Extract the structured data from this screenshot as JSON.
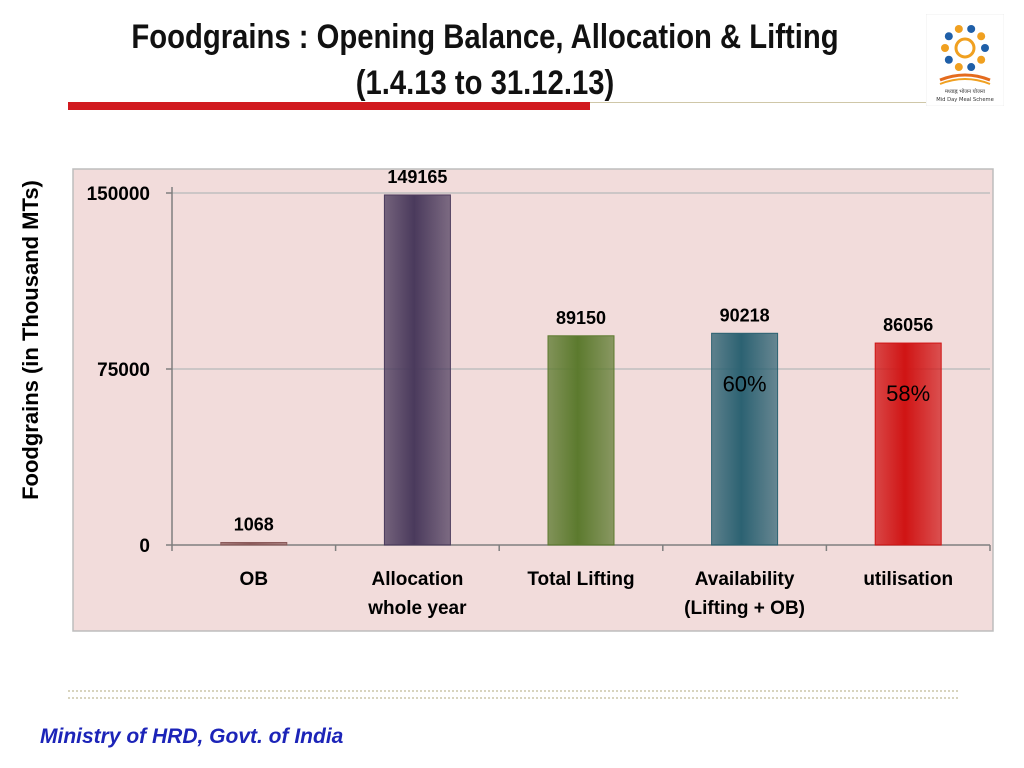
{
  "slide": {
    "title_line1": "Foodgrains : Opening Balance, Allocation & Lifting",
    "title_line2": "(1.4.13 to 31.12.13)",
    "footer": "Ministry of HRD, Govt. of India",
    "logo_caption": "मध्याह्न भोजन योजना",
    "logo_subcaption": "Mid Day Meal Scheme"
  },
  "chart_data": {
    "type": "bar",
    "title": "",
    "xlabel": "",
    "ylabel": "Foodgrains (in Thousand MTs)",
    "ylim": [
      0,
      150000
    ],
    "yticks": [
      0,
      75000,
      150000
    ],
    "categories": [
      [
        "OB"
      ],
      [
        "Allocation",
        "whole year"
      ],
      [
        "Total Lifting"
      ],
      [
        "Availability",
        "(Lifting + OB)"
      ],
      [
        "utilisation"
      ]
    ],
    "values": [
      1068,
      149165,
      89150,
      90218,
      86056
    ],
    "data_labels": [
      "1068",
      "149165",
      "89150",
      "90218",
      "86056"
    ],
    "bar_colors": [
      "#8b5a5a",
      "#4a3a5c",
      "#5c7a2e",
      "#2c6272",
      "#d01414"
    ],
    "annotations": [
      {
        "category_index": 3,
        "text": "60%",
        "color": "#000000"
      },
      {
        "category_index": 4,
        "text": "58%",
        "color": "#000000"
      }
    ],
    "grid": "horizontal",
    "background": "#f2dcdb",
    "legend": "none"
  }
}
